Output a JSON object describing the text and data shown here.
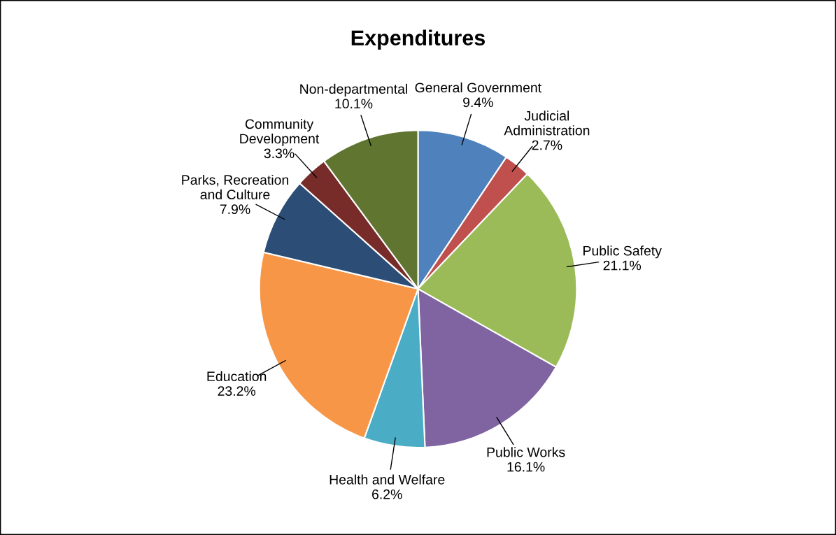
{
  "chart_data": {
    "type": "pie",
    "title": "Expenditures",
    "categories": [
      "General Government",
      "Judicial\nAdministration",
      "Public Safety",
      "Public Works",
      "Health and Welfare",
      "Education",
      "Parks, Recreation\nand Culture",
      "Community\nDevelopment",
      "Non-departmental"
    ],
    "values": [
      9.4,
      2.7,
      21.1,
      16.1,
      6.2,
      23.2,
      7.9,
      3.3,
      10.1
    ],
    "colors": [
      "#4f81bd",
      "#c0504d",
      "#9bbb59",
      "#8064a2",
      "#4bacc6",
      "#f79646",
      "#2c4d75",
      "#772c2a",
      "#5f7530"
    ],
    "value_labels": [
      "9.4%",
      "2.7%",
      "21.1%",
      "16.1%",
      "6.2%",
      "23.2%",
      "7.9%",
      "3.3%",
      "10.1%"
    ],
    "legend": false
  }
}
